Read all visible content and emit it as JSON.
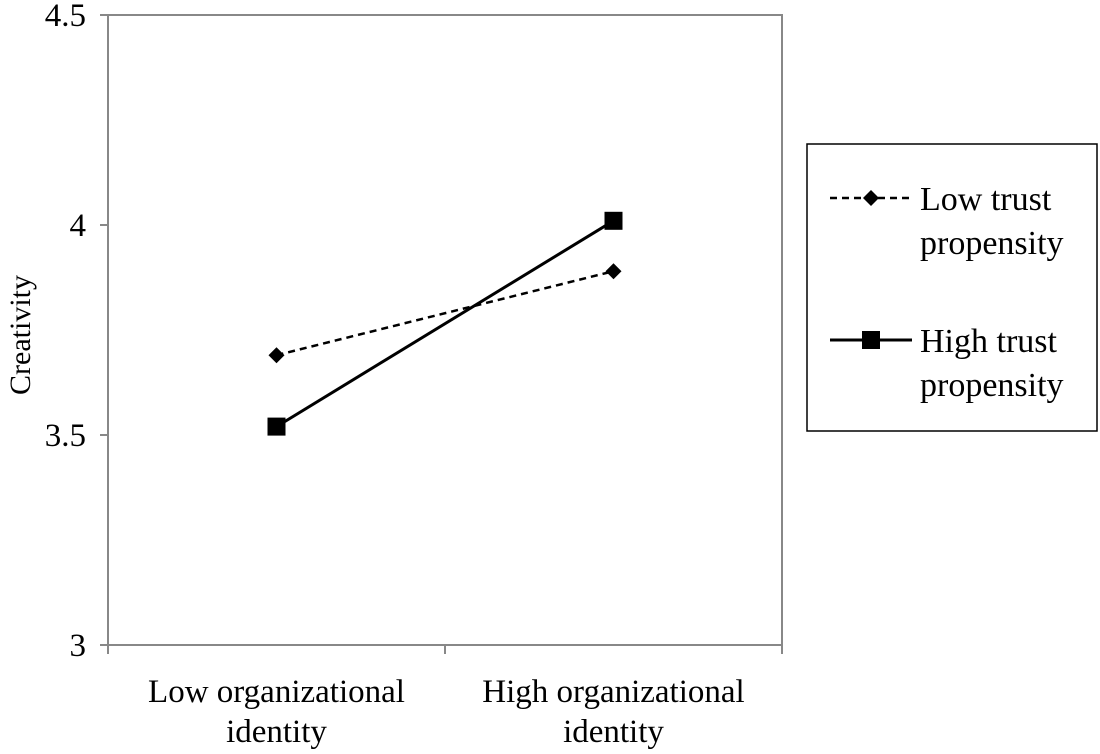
{
  "chart_data": {
    "type": "line",
    "title": "",
    "xlabel": "",
    "ylabel": "Creativity",
    "categories": [
      [
        "Low organizational",
        "identity"
      ],
      [
        "High organizational",
        "identity"
      ]
    ],
    "ylim": [
      3,
      4.5
    ],
    "yticks": [
      "3",
      "3.5",
      "4",
      "4.5"
    ],
    "grid": false,
    "legend_position": "right",
    "series": [
      {
        "name": [
          "Low trust",
          "propensity"
        ],
        "values": [
          3.69,
          3.89
        ],
        "line_style": "dashed",
        "marker": "diamond",
        "color": "#000000"
      },
      {
        "name": [
          "High trust",
          "propensity"
        ],
        "values": [
          3.52,
          4.01
        ],
        "line_style": "solid",
        "marker": "square",
        "color": "#000000"
      }
    ]
  }
}
